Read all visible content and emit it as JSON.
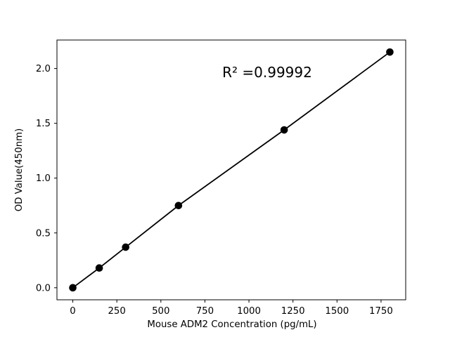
{
  "figure": {
    "background": "#ffffff",
    "frame_color": "#000000"
  },
  "chart_data": {
    "type": "scatter",
    "title": "",
    "annotation": "R² =0.99992",
    "xlabel": "Mouse ADM2 Concentration (pg/mL)",
    "ylabel": "OD Value(450nm)",
    "series": [
      {
        "name": "standard-curve",
        "x": [
          0,
          150,
          300,
          600,
          1200,
          1800
        ],
        "y": [
          0.0,
          0.18,
          0.37,
          0.75,
          1.44,
          2.15
        ],
        "marker": "circle",
        "marker_color": "#000000",
        "line_color": "#000000",
        "line_style": "solid-linear-fit"
      }
    ],
    "xticks": [
      0,
      250,
      500,
      750,
      1000,
      1250,
      1500,
      1750
    ],
    "ytick_labels": [
      "0.0",
      "0.5",
      "1.0",
      "1.5",
      "2.0"
    ],
    "ytick_values": [
      0.0,
      0.5,
      1.0,
      1.5,
      2.0
    ],
    "xlim": [
      -90,
      1890
    ],
    "ylim": [
      -0.11,
      2.26
    ],
    "grid": false,
    "legend": null
  }
}
